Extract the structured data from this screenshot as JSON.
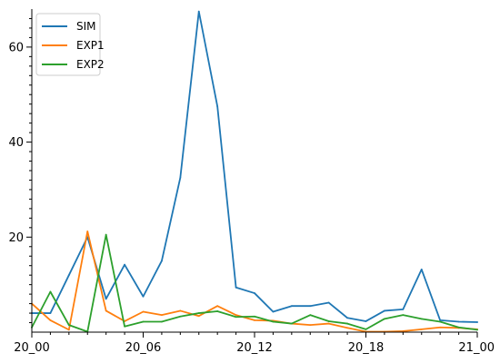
{
  "chart_data": {
    "type": "line",
    "x": [
      "20_00",
      "20_01",
      "20_02",
      "20_03",
      "20_04",
      "20_05",
      "20_06",
      "20_07",
      "20_08",
      "20_09",
      "20_10",
      "20_11",
      "20_12",
      "20_13",
      "20_14",
      "20_15",
      "20_16",
      "20_17",
      "20_18",
      "20_19",
      "20_20",
      "20_21",
      "20_22",
      "20_23",
      "21_00"
    ],
    "x_tick_labels": [
      "20_00",
      "20_06",
      "20_12",
      "20_18",
      "21_00"
    ],
    "y_tick_labels": [
      "20",
      "40",
      "60"
    ],
    "ylim": [
      0,
      68
    ],
    "grid": false,
    "legend_position": "top-left",
    "series": [
      {
        "name": "SIM",
        "color": "#1f77b4",
        "values": [
          4,
          4,
          12,
          20,
          7,
          14.2,
          7.5,
          15,
          32.5,
          67.5,
          47.5,
          9.4,
          8.2,
          4.3,
          5.5,
          5.5,
          6.2,
          3,
          2.3,
          4.5,
          4.8,
          13.2,
          2.5,
          2.2,
          2.1
        ]
      },
      {
        "name": "EXP1",
        "color": "#ff7f0e",
        "values": [
          6,
          2.5,
          0.5,
          21.2,
          4.5,
          2.3,
          4.3,
          3.6,
          4.5,
          3.4,
          5.5,
          3.6,
          2.5,
          2.4,
          1.8,
          1.5,
          1.8,
          0.9,
          0.1,
          0.1,
          0.2,
          0.6,
          1.0,
          0.9,
          0.6
        ]
      },
      {
        "name": "EXP2",
        "color": "#2ca02c",
        "values": [
          1.0,
          8.5,
          1.5,
          0.1,
          20.5,
          1.2,
          2.2,
          2.2,
          3.3,
          4.0,
          4.4,
          3.2,
          3.3,
          2.2,
          1.8,
          3.6,
          2.3,
          1.8,
          0.6,
          2.8,
          3.6,
          2.8,
          2.2,
          1.0,
          0.5
        ]
      }
    ]
  }
}
